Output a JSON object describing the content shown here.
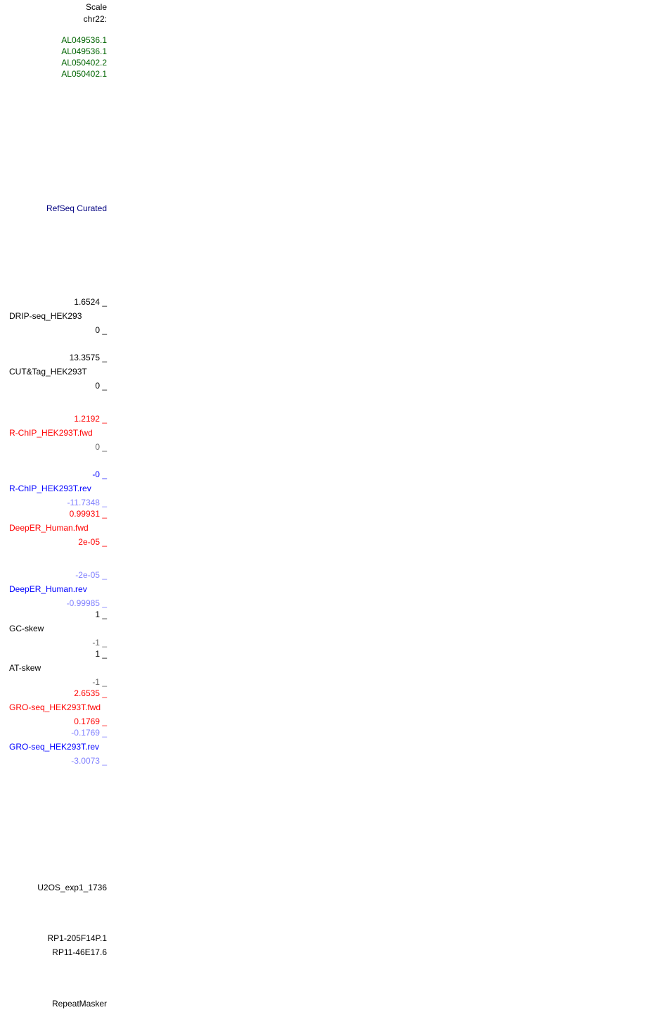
{
  "header": {
    "scale": "Scale",
    "chrom": "chr22:"
  },
  "genes": [
    "AL049536.1",
    "AL049536.1",
    "AL050402.2",
    "AL050402.1"
  ],
  "refseq": "RefSeq Curated",
  "tracks": [
    {
      "name": "DRIP-seq_HEK293",
      "max": "1.6524 _",
      "min": "0 _"
    },
    {
      "name": "CUT&Tag_HEK293T",
      "max": "13.3575 _",
      "min": "0 _"
    },
    {
      "name": "R-ChIP_HEK293T.fwd",
      "max": "1.2192 _",
      "min": "0 _"
    },
    {
      "name": "R-ChIP_HEK293T.rev",
      "max": "-0 _",
      "min": "-11.7348 _"
    },
    {
      "name": "DeepER_Human.fwd",
      "max": "0.99931 _",
      "min": "2e-05 _"
    },
    {
      "name": "DeepER_Human.rev",
      "max": "-2e-05 _",
      "min": "-0.99985 _"
    },
    {
      "name": "GC-skew",
      "max": "1 _",
      "min": "-1 _"
    },
    {
      "name": "AT-skew",
      "max": "1 _",
      "min": "-1 _"
    },
    {
      "name": "GRO-seq_HEK293T.fwd",
      "max": "2.6535 _",
      "min": "0.1769 _"
    },
    {
      "name": "GRO-seq_HEK293T.rev",
      "max": "-0.1769 _",
      "min": "-3.0073 _"
    }
  ],
  "bottom": {
    "u2os": "U2OS_exp1_1736",
    "rp1": "RP1-205F14P.1",
    "rp11": "RP11-46E17.6",
    "repeatmasker": "RepeatMasker"
  },
  "colors": {
    "gene": "#006400",
    "refseq": "#000080",
    "fwd": "#ff0000",
    "rev": "#0000ff",
    "rev_light": "#8080ff"
  }
}
